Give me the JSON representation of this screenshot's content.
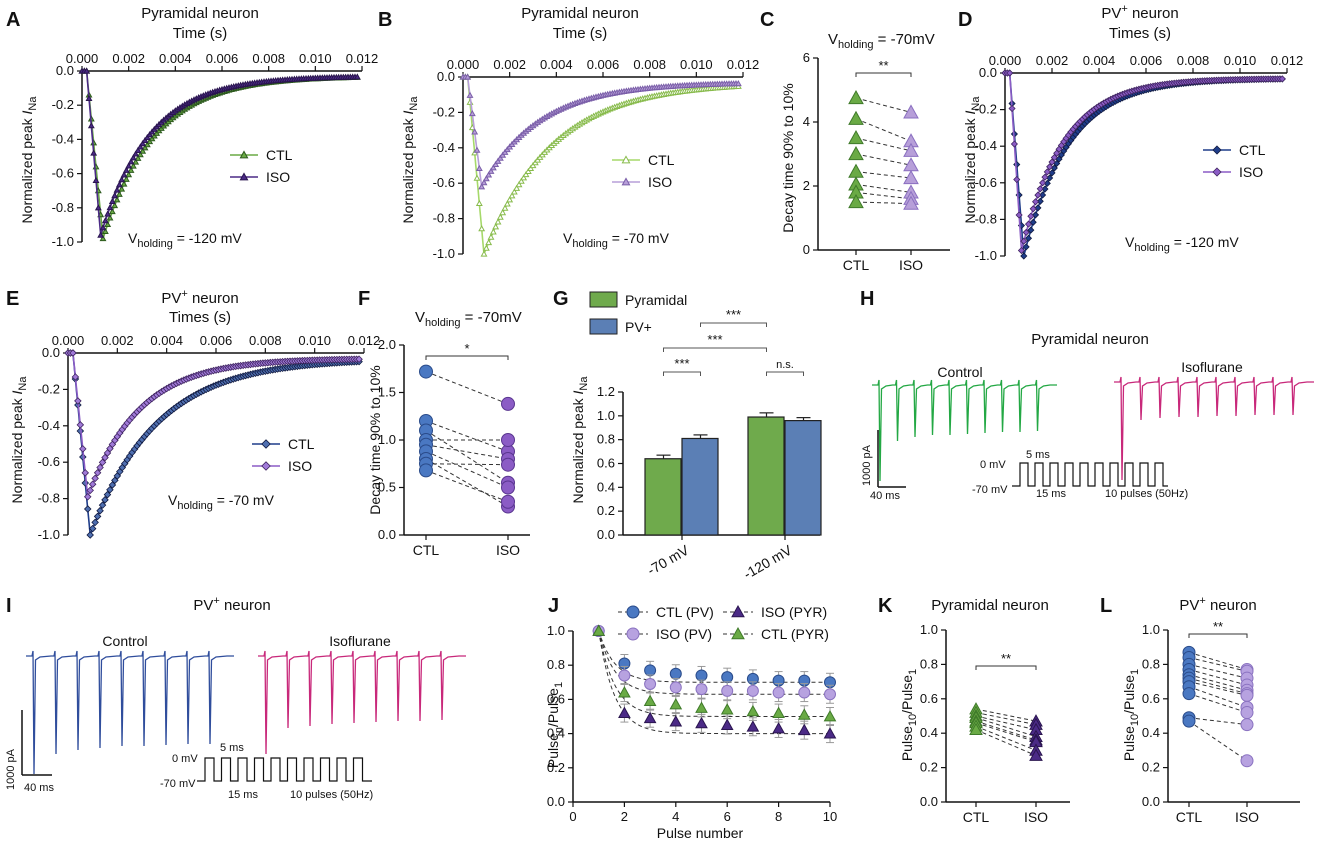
{
  "panels": {
    "A": "A",
    "B": "B",
    "C": "C",
    "D": "D",
    "E": "E",
    "F": "F",
    "G": "G",
    "H": "H",
    "I": "I",
    "J": "J",
    "K": "K",
    "L": "L"
  },
  "text": {
    "pyramidal_neuron": "Pyramidal neuron",
    "pv_neuron": "PV",
    "pv_sup": "+",
    "neuron_word": " neuron",
    "time_s": "Time (s)",
    "times_s": "Times (s)",
    "norm_peak": "Normalized peak ",
    "i_sym": "I",
    "na_sub": "Na",
    "v_hold_main": "V",
    "v_hold_sub": "holding",
    "v120": " = -120 mV",
    "v70": " = -70 mV",
    "v70_short": " = -70mV",
    "decay_label": "Decay time 90% to 10%",
    "control": "Control",
    "isoflurane": "Isoflurane",
    "scale_pa": "1000 pA",
    "scale_ms": "40 ms",
    "zero_mv": "0 mV",
    "neg70_mv": "-70 mV",
    "five_ms": "5 ms",
    "fifteen_ms": "15 ms",
    "ten_pulses": "10 pulses (50Hz)",
    "pulse_number": "Pulse number",
    "pulse_n_main": "Pulse",
    "pulse_n_sub": "n",
    "pulse_1_sub": "1",
    "pulse_10_sub": "10",
    "ns": "n.s.",
    "sig2": "**",
    "sig1": "*",
    "sig3": "***"
  },
  "colors": {
    "green": "#6aaa45",
    "green_light": "#a6d96a",
    "purple_dark": "#4b2a86",
    "purple_light": "#b79fd9",
    "navy": "#1f3d8a",
    "violet": "#8b5cc5",
    "bar_green": "#6faa4c",
    "bar_blue": "#5b7fb5",
    "trace_green": "#23a844",
    "trace_magenta": "#c8287a",
    "trace_blue": "#2f4d9c",
    "pv_blue": "#4a78c2",
    "pv_lilac": "#b7a2e0"
  },
  "chart_data": [
    {
      "id": "A",
      "type": "line",
      "title": "Pyramidal neuron",
      "xlabel": "Time (s)",
      "ylabel": "Normalized peak INa",
      "xlim": [
        0,
        0.012
      ],
      "ylim": [
        -1.0,
        0.0
      ],
      "xticks": [
        "0.000",
        "0.002",
        "0.004",
        "0.006",
        "0.008",
        "0.010",
        "0.012"
      ],
      "yticks": [
        "0.0",
        "-0.2",
        "-0.4",
        "-0.6",
        "-0.8",
        "-1.0"
      ],
      "annotation": "Vholding = -120 mV",
      "legend": [
        "CTL",
        "ISO"
      ],
      "series": [
        {
          "name": "CTL",
          "peak": -0.98,
          "t_peak": 0.0009,
          "tau": 0.0022
        },
        {
          "name": "ISO",
          "peak": -0.96,
          "t_peak": 0.0008,
          "tau": 0.0021
        }
      ]
    },
    {
      "id": "B",
      "type": "line",
      "title": "Pyramidal neuron",
      "xlabel": "Time (s)",
      "ylabel": "Normalized peak INa",
      "xlim": [
        0,
        0.012
      ],
      "ylim": [
        -1.0,
        0.0
      ],
      "xticks": [
        "0.000",
        "0.002",
        "0.004",
        "0.006",
        "0.008",
        "0.010",
        "0.012"
      ],
      "yticks": [
        "0.0",
        "-0.2",
        "-0.4",
        "-0.6",
        "-0.8",
        "-1.0"
      ],
      "annotation": "Vholding = -70 mV",
      "legend": [
        "CTL",
        "ISO"
      ],
      "series": [
        {
          "name": "CTL",
          "peak": -1.0,
          "t_peak": 0.0009,
          "tau": 0.0029
        },
        {
          "name": "ISO",
          "peak": -0.62,
          "t_peak": 0.0008,
          "tau": 0.0025
        }
      ]
    },
    {
      "id": "C",
      "type": "paired",
      "title": "Vholding = -70mV",
      "ylabel": "Decay time 90% to 10%",
      "ylim": [
        0,
        6
      ],
      "yticks": [
        "0",
        "2",
        "4",
        "6"
      ],
      "categories": [
        "CTL",
        "ISO"
      ],
      "significance": "**",
      "CTL": [
        4.75,
        4.1,
        3.5,
        3.0,
        2.45,
        2.05,
        1.8,
        1.5
      ],
      "ISO": [
        4.3,
        3.4,
        3.1,
        2.65,
        2.25,
        1.8,
        1.6,
        1.45
      ]
    },
    {
      "id": "D",
      "type": "line",
      "title": "PV+ neuron",
      "xlabel": "Times (s)",
      "ylabel": "Normalized peak INa",
      "xlim": [
        0,
        0.012
      ],
      "ylim": [
        -1.0,
        0.0
      ],
      "xticks": [
        "0.000",
        "0.002",
        "0.004",
        "0.006",
        "0.008",
        "0.010",
        "0.012"
      ],
      "yticks": [
        "0.0",
        "-0.2",
        "-0.4",
        "-0.6",
        "-0.8",
        "-1.0"
      ],
      "annotation": "Vholding = -120 mV",
      "legend": [
        "CTL",
        "ISO"
      ],
      "series": [
        {
          "name": "CTL",
          "peak": -1.0,
          "t_peak": 0.0008,
          "tau": 0.0019
        },
        {
          "name": "ISO",
          "peak": -0.97,
          "t_peak": 0.0007,
          "tau": 0.0018
        }
      ]
    },
    {
      "id": "E",
      "type": "line",
      "title": "PV+ neuron",
      "xlabel": "Times (s)",
      "ylabel": "Normalized peak INa",
      "xlim": [
        0,
        0.012
      ],
      "ylim": [
        -1.0,
        0.0
      ],
      "xticks": [
        "0.000",
        "0.002",
        "0.004",
        "0.006",
        "0.008",
        "0.010",
        "0.012"
      ],
      "yticks": [
        "0.0",
        "-0.2",
        "-0.4",
        "-0.6",
        "-0.8",
        "-1.0"
      ],
      "annotation": "Vholding = -70 mV",
      "legend": [
        "CTL",
        "ISO"
      ],
      "series": [
        {
          "name": "CTL",
          "peak": -1.0,
          "t_peak": 0.0009,
          "tau": 0.0027
        },
        {
          "name": "ISO",
          "peak": -0.79,
          "t_peak": 0.0008,
          "tau": 0.0021
        }
      ]
    },
    {
      "id": "F",
      "type": "paired",
      "title": "Vholding = -70mV",
      "ylabel": "Decay time 90% to 10%",
      "ylim": [
        0,
        2.0
      ],
      "yticks": [
        "0.0",
        "0.5",
        "1.0",
        "1.5",
        "2.0"
      ],
      "categories": [
        "CTL",
        "ISO"
      ],
      "significance": "*",
      "CTL": [
        1.72,
        1.2,
        1.1,
        1.0,
        0.95,
        0.88,
        0.8,
        0.75,
        0.68
      ],
      "ISO": [
        1.38,
        0.88,
        0.55,
        1.0,
        0.8,
        0.5,
        0.3,
        0.74,
        0.35
      ]
    },
    {
      "id": "G",
      "type": "bar",
      "ylabel": "Normalized peak INa",
      "ylim": [
        0,
        1.2
      ],
      "yticks": [
        "0.0",
        "0.2",
        "0.4",
        "0.6",
        "0.8",
        "1.0",
        "1.2"
      ],
      "categories": [
        "-70 mV",
        "-120 mV"
      ],
      "legend": [
        "Pyramidal",
        "PV+"
      ],
      "series": [
        {
          "name": "Pyramidal",
          "values": [
            0.64,
            0.99
          ],
          "sem": [
            0.03,
            0.035
          ]
        },
        {
          "name": "PV+",
          "values": [
            0.81,
            0.96
          ],
          "sem": [
            0.03,
            0.025
          ]
        }
      ],
      "significance": [
        "***",
        "***",
        "***",
        "n.s."
      ]
    },
    {
      "id": "J",
      "type": "scatter",
      "xlabel": "Pulse number",
      "ylabel": "Pulsen/Pulse1",
      "xlim": [
        0,
        10
      ],
      "ylim": [
        0,
        1.0
      ],
      "xticks": [
        "0",
        "2",
        "4",
        "6",
        "8",
        "10"
      ],
      "yticks": [
        "0.0",
        "0.2",
        "0.4",
        "0.6",
        "0.8",
        "1.0"
      ],
      "x": [
        1,
        2,
        3,
        4,
        5,
        6,
        7,
        8,
        9,
        10
      ],
      "series": [
        {
          "name": "CTL (PV)",
          "values": [
            1.0,
            0.81,
            0.77,
            0.75,
            0.74,
            0.73,
            0.72,
            0.71,
            0.71,
            0.7
          ]
        },
        {
          "name": "ISO (PV)",
          "values": [
            1.0,
            0.74,
            0.69,
            0.67,
            0.66,
            0.65,
            0.65,
            0.64,
            0.64,
            0.63
          ]
        },
        {
          "name": "ISO (PYR)",
          "values": [
            1.0,
            0.52,
            0.49,
            0.47,
            0.46,
            0.45,
            0.44,
            0.43,
            0.42,
            0.4
          ]
        },
        {
          "name": "CTL (PYR)",
          "values": [
            1.0,
            0.64,
            0.59,
            0.57,
            0.55,
            0.54,
            0.53,
            0.52,
            0.51,
            0.5
          ]
        }
      ]
    },
    {
      "id": "K",
      "type": "paired",
      "title": "Pyramidal neuron",
      "ylabel": "Pulse10/Pulse1",
      "ylim": [
        0,
        1.0
      ],
      "yticks": [
        "0.0",
        "0.2",
        "0.4",
        "0.6",
        "0.8",
        "1.0"
      ],
      "categories": [
        "CTL",
        "ISO"
      ],
      "significance": "**",
      "CTL": [
        0.54,
        0.52,
        0.5,
        0.49,
        0.47,
        0.46,
        0.44,
        0.42
      ],
      "ISO": [
        0.47,
        0.45,
        0.42,
        0.38,
        0.36,
        0.35,
        0.3,
        0.27
      ]
    },
    {
      "id": "L",
      "type": "paired",
      "title": "PV+ neuron",
      "ylabel": "Pulse10/Pulse1",
      "ylim": [
        0,
        1.0
      ],
      "yticks": [
        "0.0",
        "0.2",
        "0.4",
        "0.6",
        "0.8",
        "1.0"
      ],
      "categories": [
        "CTL",
        "ISO"
      ],
      "significance": "**",
      "CTL": [
        0.87,
        0.84,
        0.8,
        0.77,
        0.74,
        0.72,
        0.7,
        0.67,
        0.63,
        0.49,
        0.47
      ],
      "ISO": [
        0.77,
        0.76,
        0.72,
        0.68,
        0.65,
        0.63,
        0.62,
        0.55,
        0.52,
        0.45,
        0.24
      ]
    }
  ]
}
